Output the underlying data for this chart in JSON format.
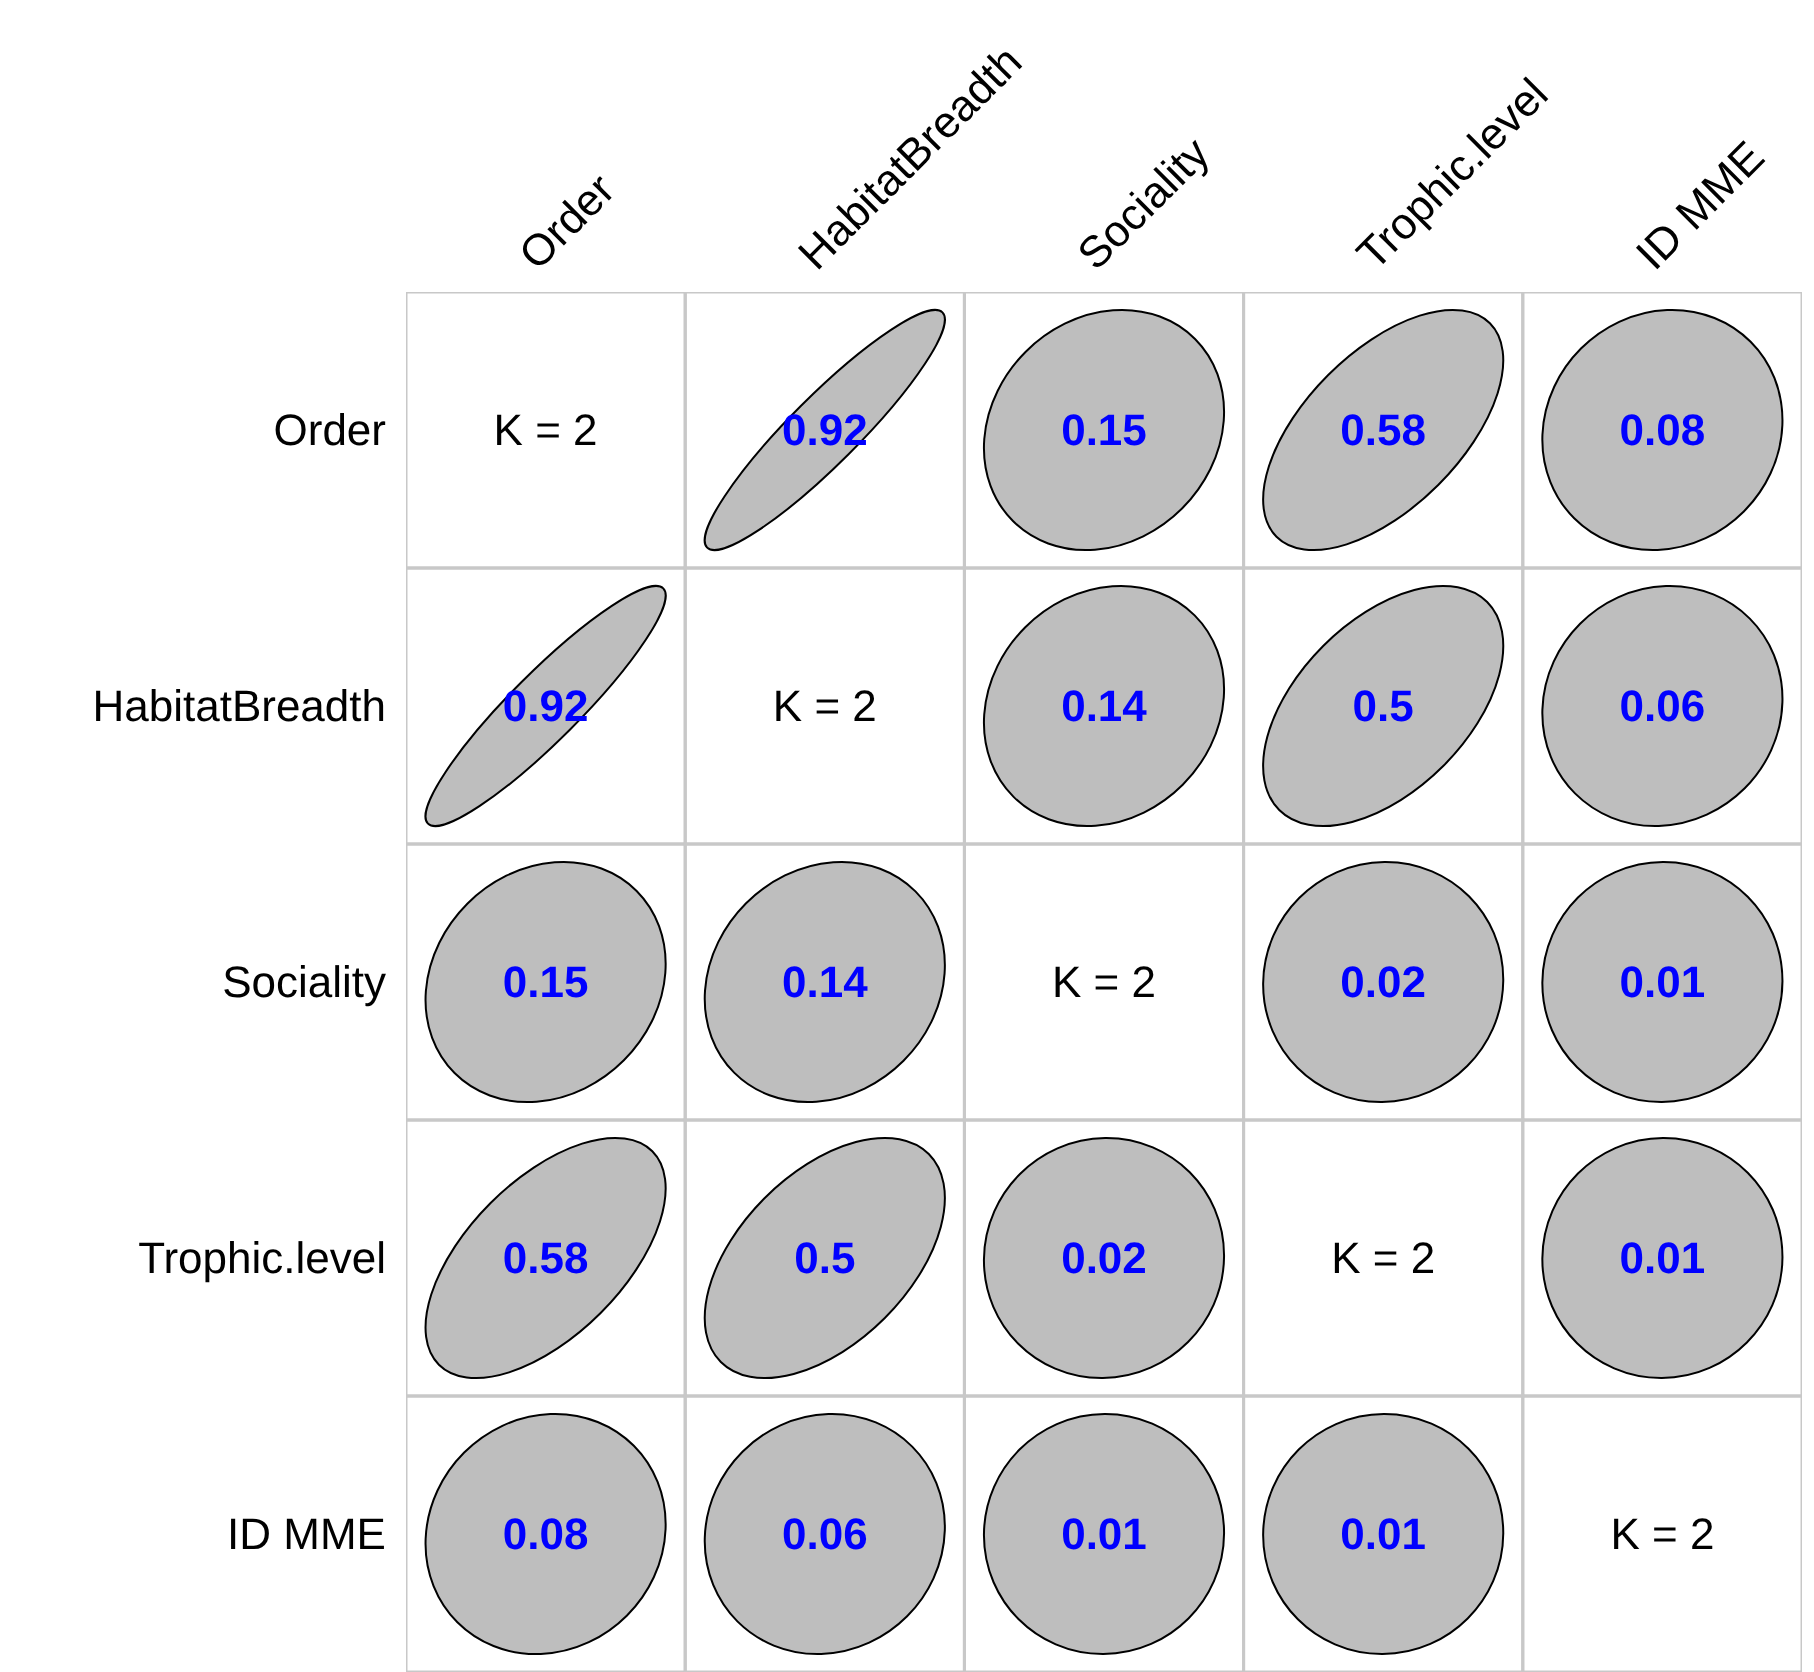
{
  "chart_data": {
    "type": "heatmap",
    "categories": [
      "Order",
      "HabitatBreadth",
      "Sociality",
      "Trophic.level",
      "ID MME"
    ],
    "y_categories": [
      "Order",
      "HabitatBreadth",
      "Sociality",
      "Trophic.level",
      "ID MME"
    ],
    "cells": [
      [
        null,
        0.92,
        0.15,
        0.58,
        0.08
      ],
      [
        0.92,
        null,
        0.14,
        0.5,
        0.06
      ],
      [
        0.15,
        0.14,
        null,
        0.02,
        0.01
      ],
      [
        0.58,
        0.5,
        0.02,
        null,
        0.01
      ],
      [
        0.08,
        0.06,
        0.01,
        0.01,
        null
      ]
    ],
    "cell_labels": [
      [
        "K = 2",
        "0.92",
        "0.15",
        "0.58",
        "0.08"
      ],
      [
        "0.92",
        "K = 2",
        "0.14",
        "0.5",
        "0.06"
      ],
      [
        "0.15",
        "0.14",
        "K = 2",
        "0.02",
        "0.01"
      ],
      [
        "0.58",
        "0.5",
        "0.02",
        "K = 2",
        "0.01"
      ],
      [
        "0.08",
        "0.06",
        "0.01",
        "0.01",
        "K = 2"
      ]
    ]
  }
}
